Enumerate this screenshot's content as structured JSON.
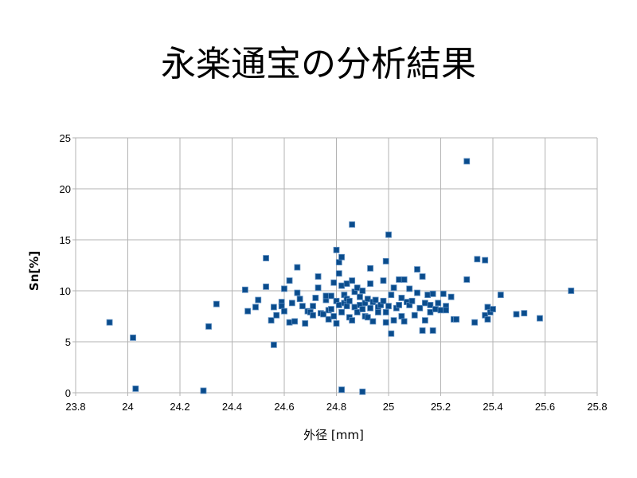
{
  "page": {
    "title": "永楽通宝の分析結果"
  },
  "chart_data": {
    "type": "scatter",
    "xlabel": "外径 [mm]",
    "ylabel": "Sn[%]",
    "xlim": [
      23.8,
      25.8
    ],
    "ylim": [
      0,
      25
    ],
    "xticks": [
      23.8,
      24,
      24.2,
      24.4,
      24.6,
      24.8,
      25,
      25.2,
      25.4,
      25.6,
      25.8
    ],
    "xtick_labels": [
      "23.8",
      "24",
      "24.2",
      "24.4",
      "24.6",
      "24.8",
      "25",
      "25.2",
      "25.4",
      "25.6",
      "25.8"
    ],
    "yticks": [
      0,
      5,
      10,
      15,
      20,
      25
    ],
    "ytick_labels": [
      "0",
      "5",
      "10",
      "15",
      "20",
      "25"
    ],
    "grid": true,
    "marker_color": "#0a4c8c",
    "points": [
      [
        23.93,
        6.9
      ],
      [
        24.02,
        5.4
      ],
      [
        24.03,
        0.4
      ],
      [
        24.29,
        0.2
      ],
      [
        24.31,
        6.5
      ],
      [
        24.34,
        8.7
      ],
      [
        24.45,
        10.1
      ],
      [
        24.46,
        8.0
      ],
      [
        24.49,
        8.4
      ],
      [
        24.5,
        9.1
      ],
      [
        24.53,
        13.2
      ],
      [
        24.53,
        10.4
      ],
      [
        24.55,
        7.1
      ],
      [
        24.56,
        8.4
      ],
      [
        24.56,
        4.7
      ],
      [
        24.57,
        7.6
      ],
      [
        24.59,
        8.9
      ],
      [
        24.59,
        8.5
      ],
      [
        24.6,
        10.2
      ],
      [
        24.6,
        8.0
      ],
      [
        24.62,
        11.0
      ],
      [
        24.62,
        6.9
      ],
      [
        24.63,
        8.8
      ],
      [
        24.64,
        7.0
      ],
      [
        24.65,
        9.8
      ],
      [
        24.65,
        12.3
      ],
      [
        24.66,
        9.2
      ],
      [
        24.67,
        8.5
      ],
      [
        24.68,
        6.8
      ],
      [
        24.69,
        8.0
      ],
      [
        24.7,
        7.9
      ],
      [
        24.71,
        8.5
      ],
      [
        24.71,
        7.6
      ],
      [
        24.72,
        9.3
      ],
      [
        24.73,
        10.3
      ],
      [
        24.73,
        11.4
      ],
      [
        24.74,
        7.8
      ],
      [
        24.75,
        7.7
      ],
      [
        24.76,
        9.1
      ],
      [
        24.76,
        9.5
      ],
      [
        24.77,
        8.1
      ],
      [
        24.77,
        7.2
      ],
      [
        24.78,
        8.2
      ],
      [
        24.78,
        9.5
      ],
      [
        24.79,
        10.8
      ],
      [
        24.79,
        7.5
      ],
      [
        24.8,
        14.0
      ],
      [
        24.8,
        9.0
      ],
      [
        24.8,
        6.8
      ],
      [
        24.81,
        12.8
      ],
      [
        24.81,
        11.7
      ],
      [
        24.81,
        8.6
      ],
      [
        24.82,
        13.3
      ],
      [
        24.82,
        10.5
      ],
      [
        24.82,
        7.9
      ],
      [
        24.82,
        0.3
      ],
      [
        24.83,
        8.8
      ],
      [
        24.83,
        9.6
      ],
      [
        24.84,
        9.2
      ],
      [
        24.84,
        10.7
      ],
      [
        24.84,
        8.5
      ],
      [
        24.85,
        7.4
      ],
      [
        24.85,
        9.0
      ],
      [
        24.86,
        16.5
      ],
      [
        24.86,
        11.0
      ],
      [
        24.86,
        7.1
      ],
      [
        24.87,
        9.9
      ],
      [
        24.87,
        8.4
      ],
      [
        24.88,
        10.3
      ],
      [
        24.88,
        7.9
      ],
      [
        24.89,
        8.6
      ],
      [
        24.89,
        9.4
      ],
      [
        24.9,
        8.2
      ],
      [
        24.9,
        10.0
      ],
      [
        24.9,
        0.1
      ],
      [
        24.91,
        7.5
      ],
      [
        24.91,
        8.8
      ],
      [
        24.92,
        9.2
      ],
      [
        24.92,
        7.4
      ],
      [
        24.93,
        10.7
      ],
      [
        24.93,
        12.2
      ],
      [
        24.93,
        8.3
      ],
      [
        24.94,
        7.0
      ],
      [
        24.94,
        8.9
      ],
      [
        24.95,
        9.1
      ],
      [
        24.96,
        8.4
      ],
      [
        24.96,
        7.9
      ],
      [
        24.97,
        8.6
      ],
      [
        24.98,
        9.0
      ],
      [
        24.98,
        11.0
      ],
      [
        24.99,
        12.9
      ],
      [
        24.99,
        7.9
      ],
      [
        24.99,
        6.9
      ],
      [
        25.0,
        15.5
      ],
      [
        25.0,
        8.5
      ],
      [
        25.01,
        5.8
      ],
      [
        25.01,
        9.6
      ],
      [
        25.02,
        10.3
      ],
      [
        25.02,
        7.1
      ],
      [
        25.03,
        8.3
      ],
      [
        25.04,
        11.1
      ],
      [
        25.04,
        8.6
      ],
      [
        25.05,
        9.3
      ],
      [
        25.05,
        7.5
      ],
      [
        25.06,
        11.1
      ],
      [
        25.06,
        7.0
      ],
      [
        25.07,
        8.9
      ],
      [
        25.08,
        10.2
      ],
      [
        25.08,
        8.6
      ],
      [
        25.09,
        9.0
      ],
      [
        25.1,
        7.6
      ],
      [
        25.11,
        12.1
      ],
      [
        25.11,
        9.8
      ],
      [
        25.12,
        8.3
      ],
      [
        25.13,
        11.4
      ],
      [
        25.13,
        6.1
      ],
      [
        25.14,
        8.8
      ],
      [
        25.14,
        7.1
      ],
      [
        25.15,
        9.6
      ],
      [
        25.16,
        7.9
      ],
      [
        25.16,
        8.6
      ],
      [
        25.17,
        6.1
      ],
      [
        25.17,
        9.7
      ],
      [
        25.18,
        8.2
      ],
      [
        25.19,
        8.8
      ],
      [
        25.2,
        8.1
      ],
      [
        25.21,
        9.7
      ],
      [
        25.22,
        8.5
      ],
      [
        25.22,
        8.1
      ],
      [
        25.24,
        9.4
      ],
      [
        25.25,
        7.2
      ],
      [
        25.26,
        7.2
      ],
      [
        25.3,
        22.7
      ],
      [
        25.3,
        11.1
      ],
      [
        25.33,
        6.9
      ],
      [
        25.34,
        13.1
      ],
      [
        25.37,
        13.0
      ],
      [
        25.37,
        7.6
      ],
      [
        25.38,
        8.4
      ],
      [
        25.38,
        7.2
      ],
      [
        25.39,
        7.9
      ],
      [
        25.4,
        8.2
      ],
      [
        25.43,
        9.6
      ],
      [
        25.49,
        7.7
      ],
      [
        25.52,
        7.8
      ],
      [
        25.58,
        7.3
      ],
      [
        25.7,
        10.0
      ]
    ]
  }
}
